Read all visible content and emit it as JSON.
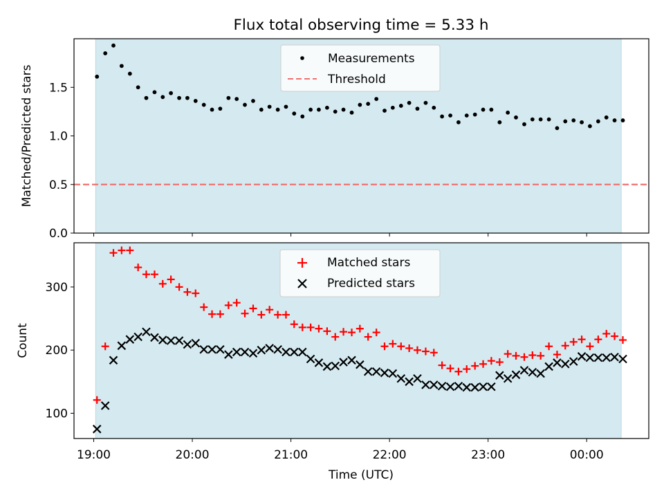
{
  "figure": {
    "title": "Flux total observing time = 5.33 h",
    "xlabel": "Time (UTC)",
    "xticks": [
      "19:00",
      "20:00",
      "21:00",
      "22:00",
      "23:00",
      "00:00"
    ],
    "observing_band_color": "#d4eaf0"
  },
  "chart_data": [
    {
      "type": "scatter",
      "ylabel": "Matched/Predicted stars",
      "ylim": [
        0,
        2.0
      ],
      "yticks": [
        "0.0",
        "0.5",
        "1.0",
        "1.5"
      ],
      "legend": {
        "placement": "top-center",
        "entries": [
          "Measurements",
          "Threshold"
        ]
      },
      "observing_window_hours": [
        19.02,
        24.35
      ],
      "threshold": {
        "name": "Threshold",
        "value": 0.5,
        "color": "#f07070",
        "style": "dashed"
      },
      "series": [
        {
          "name": "Measurements",
          "color": "#000000",
          "marker": "dot",
          "x": [
            19.033,
            19.117,
            19.2,
            19.283,
            19.367,
            19.45,
            19.533,
            19.617,
            19.7,
            19.783,
            19.867,
            19.95,
            20.033,
            20.117,
            20.2,
            20.283,
            20.367,
            20.45,
            20.533,
            20.617,
            20.7,
            20.783,
            20.867,
            20.95,
            21.033,
            21.117,
            21.2,
            21.283,
            21.367,
            21.45,
            21.533,
            21.617,
            21.7,
            21.783,
            21.867,
            21.95,
            22.033,
            22.117,
            22.2,
            22.283,
            22.367,
            22.45,
            22.533,
            22.617,
            22.7,
            22.783,
            22.867,
            22.95,
            23.033,
            23.117,
            23.2,
            23.283,
            23.367,
            23.45,
            23.533,
            23.617,
            23.7,
            23.783,
            23.867,
            23.95,
            24.033,
            24.117,
            24.2,
            24.283,
            24.367
          ],
          "y": [
            1.61,
            1.85,
            1.93,
            1.72,
            1.64,
            1.5,
            1.39,
            1.45,
            1.4,
            1.44,
            1.39,
            1.39,
            1.36,
            1.32,
            1.27,
            1.28,
            1.39,
            1.38,
            1.32,
            1.36,
            1.27,
            1.3,
            1.27,
            1.3,
            1.23,
            1.2,
            1.27,
            1.27,
            1.29,
            1.25,
            1.27,
            1.24,
            1.32,
            1.33,
            1.38,
            1.26,
            1.29,
            1.31,
            1.34,
            1.28,
            1.34,
            1.29,
            1.2,
            1.21,
            1.14,
            1.21,
            1.22,
            1.27,
            1.27,
            1.14,
            1.24,
            1.19,
            1.12,
            1.17,
            1.17,
            1.17,
            1.08,
            1.15,
            1.16,
            1.14,
            1.1,
            1.15,
            1.19,
            1.16,
            1.16
          ]
        }
      ]
    },
    {
      "type": "scatter",
      "ylabel": "Count",
      "ylim": [
        60,
        370
      ],
      "yticks": [
        "100",
        "200",
        "300"
      ],
      "legend": {
        "placement": "top-center",
        "entries": [
          "Matched stars",
          "Predicted stars"
        ]
      },
      "series": [
        {
          "name": "Matched stars",
          "color": "#ff0000",
          "marker": "plus",
          "x": [
            19.033,
            19.117,
            19.2,
            19.283,
            19.367,
            19.45,
            19.533,
            19.617,
            19.7,
            19.783,
            19.867,
            19.95,
            20.033,
            20.117,
            20.2,
            20.283,
            20.367,
            20.45,
            20.533,
            20.617,
            20.7,
            20.783,
            20.867,
            20.95,
            21.033,
            21.117,
            21.2,
            21.283,
            21.367,
            21.45,
            21.533,
            21.617,
            21.7,
            21.783,
            21.867,
            21.95,
            22.033,
            22.117,
            22.2,
            22.283,
            22.367,
            22.45,
            22.533,
            22.617,
            22.7,
            22.783,
            22.867,
            22.95,
            23.033,
            23.117,
            23.2,
            23.283,
            23.367,
            23.45,
            23.533,
            23.617,
            23.7,
            23.783,
            23.867,
            23.95,
            24.033,
            24.117,
            24.2,
            24.283,
            24.367
          ],
          "y": [
            121,
            206,
            354,
            358,
            358,
            331,
            320,
            320,
            305,
            312,
            300,
            292,
            290,
            268,
            257,
            257,
            271,
            275,
            258,
            266,
            256,
            264,
            256,
            256,
            241,
            236,
            236,
            234,
            230,
            221,
            229,
            228,
            234,
            221,
            228,
            206,
            210,
            206,
            203,
            200,
            198,
            196,
            176,
            171,
            166,
            170,
            175,
            178,
            183,
            181,
            194,
            191,
            189,
            192,
            191,
            206,
            193,
            207,
            213,
            217,
            206,
            217,
            226,
            222,
            216
          ]
        },
        {
          "name": "Predicted stars",
          "color": "#000000",
          "marker": "x",
          "x": [
            19.033,
            19.117,
            19.2,
            19.283,
            19.367,
            19.45,
            19.533,
            19.617,
            19.7,
            19.783,
            19.867,
            19.95,
            20.033,
            20.117,
            20.2,
            20.283,
            20.367,
            20.45,
            20.533,
            20.617,
            20.7,
            20.783,
            20.867,
            20.95,
            21.033,
            21.117,
            21.2,
            21.283,
            21.367,
            21.45,
            21.533,
            21.617,
            21.7,
            21.783,
            21.867,
            21.95,
            22.033,
            22.117,
            22.2,
            22.283,
            22.367,
            22.45,
            22.533,
            22.617,
            22.7,
            22.783,
            22.867,
            22.95,
            23.033,
            23.117,
            23.2,
            23.283,
            23.367,
            23.45,
            23.533,
            23.617,
            23.7,
            23.783,
            23.867,
            23.95,
            24.033,
            24.117,
            24.2,
            24.283,
            24.367
          ],
          "y": [
            75,
            112,
            184,
            207,
            217,
            221,
            229,
            220,
            216,
            215,
            215,
            209,
            211,
            201,
            201,
            201,
            193,
            197,
            197,
            195,
            200,
            203,
            201,
            197,
            197,
            197,
            186,
            180,
            174,
            175,
            181,
            184,
            177,
            166,
            166,
            164,
            163,
            155,
            150,
            155,
            145,
            145,
            143,
            142,
            143,
            141,
            141,
            142,
            142,
            160,
            155,
            161,
            168,
            165,
            163,
            174,
            180,
            178,
            182,
            190,
            188,
            188,
            188,
            189,
            186
          ]
        }
      ]
    }
  ]
}
